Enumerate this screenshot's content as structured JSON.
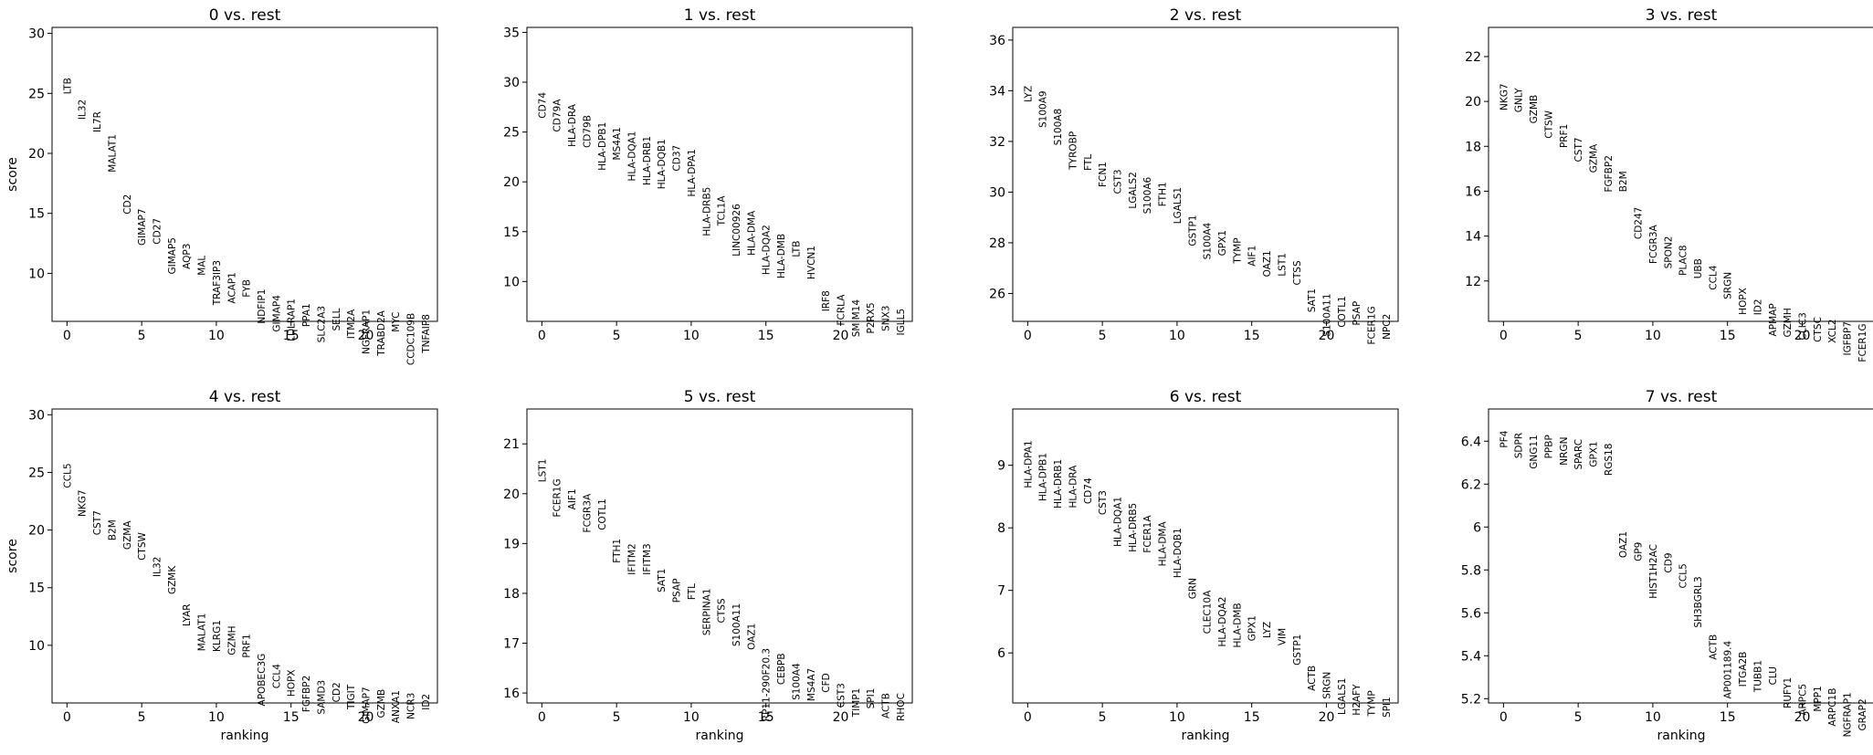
{
  "chart_data": {
    "type": "scatter",
    "xlabel": "ranking",
    "ylabel": "score",
    "panels": [
      {
        "title": "0 vs. rest",
        "xticks": [
          0,
          5,
          10,
          15,
          20
        ],
        "yticks": [
          10,
          15,
          20,
          25,
          30
        ],
        "ylim": [
          6,
          30.5
        ],
        "xlim": [
          -1,
          24.8
        ],
        "genes": [
          "LTB",
          "IL32",
          "IL7R",
          "MALAT1",
          "CD2",
          "GIMAP7",
          "CD27",
          "GIMAP5",
          "AQP3",
          "MAL",
          "TRAF3IP3",
          "ACAP1",
          "FYB",
          "NDFIP1",
          "GIMAP4",
          "LDLRAP1",
          "PPA1",
          "SLC2A3",
          "SELL",
          "ITM2A",
          "NGFRAP1",
          "TRABD2A",
          "MYC",
          "CCDC109B",
          "TNFAIP8"
        ],
        "scores": [
          26.3,
          24.5,
          23.5,
          21.6,
          16.6,
          15.4,
          14.6,
          13.0,
          12.5,
          11.5,
          11.1,
          10.1,
          9.5,
          8.7,
          8.2,
          7.9,
          7.5,
          7.3,
          7.1,
          7.0,
          7.0,
          6.9,
          6.8,
          6.7,
          6.6
        ]
      },
      {
        "title": "1 vs. rest",
        "xticks": [
          0,
          5,
          10,
          15,
          20
        ],
        "yticks": [
          10,
          15,
          20,
          25,
          30,
          35
        ],
        "ylim": [
          6,
          35.5
        ],
        "xlim": [
          -1,
          24.8
        ],
        "genes": [
          "CD74",
          "CD79A",
          "HLA-DRA",
          "CD79B",
          "HLA-DPB1",
          "MS4A1",
          "HLA-DQA1",
          "HLA-DRB1",
          "HLA-DQB1",
          "CD37",
          "HLA-DPA1",
          "HLA-DRB5",
          "TCL1A",
          "LINC00926",
          "HLA-DMA",
          "HLA-DQA2",
          "HLA-DMB",
          "LTB",
          "HVCN1",
          "IRF8",
          "FCRLA",
          "SMIM14",
          "P2RX5",
          "SNX3",
          "IGLL5"
        ],
        "scores": [
          29.0,
          28.3,
          27.8,
          26.7,
          26.0,
          25.5,
          25.1,
          24.6,
          24.3,
          23.7,
          23.3,
          19.5,
          18.6,
          17.8,
          17.1,
          15.7,
          14.8,
          14.1,
          13.6,
          9.1,
          8.7,
          8.2,
          7.9,
          7.6,
          7.3
        ]
      },
      {
        "title": "2 vs. rest",
        "xticks": [
          0,
          5,
          10,
          15,
          20
        ],
        "yticks": [
          26,
          28,
          30,
          32,
          34,
          36
        ],
        "ylim": [
          24.9,
          36.5
        ],
        "xlim": [
          -1,
          24.8
        ],
        "genes": [
          "LYZ",
          "S100A9",
          "S100A8",
          "TYROBP",
          "FTL",
          "FCN1",
          "CST3",
          "LGALS2",
          "S100A6",
          "FTH1",
          "LGALS1",
          "GSTP1",
          "S100A4",
          "GPX1",
          "TYMP",
          "AIF1",
          "OAZ1",
          "LST1",
          "CTSS",
          "SAT1",
          "S100A11",
          "COTL1",
          "PSAP",
          "FCER1G",
          "NPC2"
        ],
        "scores": [
          34.2,
          34.0,
          33.3,
          32.4,
          31.5,
          31.2,
          30.9,
          30.8,
          30.6,
          30.4,
          30.2,
          29.1,
          28.8,
          28.5,
          28.2,
          27.9,
          27.7,
          27.6,
          27.3,
          26.2,
          26.0,
          25.9,
          25.7,
          25.5,
          25.2
        ]
      },
      {
        "title": "3 vs. rest",
        "xticks": [
          0,
          5,
          10,
          15,
          20
        ],
        "yticks": [
          12,
          14,
          16,
          18,
          20,
          22
        ],
        "ylim": [
          10.2,
          23.3
        ],
        "xlim": [
          -1,
          24.8
        ],
        "genes": [
          "NKG7",
          "GNLY",
          "GZMB",
          "CTSW",
          "PRF1",
          "CST7",
          "GZMA",
          "FGFBP2",
          "B2M",
          "CD247",
          "FCGR3A",
          "SPON2",
          "PLAC8",
          "UBB",
          "CCL4",
          "SRGN",
          "HOPX",
          "ID2",
          "APMAP",
          "GZMH",
          "CLIC3",
          "CTSC",
          "XCL2",
          "IGFBP7",
          "FCER1G"
        ],
        "scores": [
          20.8,
          20.6,
          20.3,
          19.6,
          19.0,
          18.4,
          18.1,
          17.6,
          16.9,
          15.3,
          14.5,
          14.0,
          13.6,
          13.0,
          12.7,
          12.4,
          11.7,
          11.2,
          11.0,
          10.8,
          10.6,
          10.4,
          10.3,
          10.2,
          10.1
        ]
      },
      {
        "title": "4 vs. rest",
        "xticks": [
          0,
          5,
          10,
          15,
          20
        ],
        "yticks": [
          10,
          15,
          20,
          25,
          30
        ],
        "ylim": [
          5,
          30.5
        ],
        "xlim": [
          -1,
          24.8
        ],
        "genes": [
          "CCL5",
          "NKG7",
          "CST7",
          "B2M",
          "GZMA",
          "CTSW",
          "IL32",
          "GZMK",
          "LYAR",
          "MALAT1",
          "KLRG1",
          "GZMH",
          "PRF1",
          "APOBEC3G",
          "CCL4",
          "HOPX",
          "FGFBP2",
          "SAMD3",
          "CD2",
          "TIGIT",
          "GIMAP7",
          "GZMB",
          "ANXA1",
          "NCR3",
          "ID2"
        ],
        "scores": [
          25.8,
          23.5,
          21.7,
          20.9,
          20.8,
          19.8,
          17.7,
          16.9,
          13.6,
          12.8,
          12.2,
          11.7,
          11.0,
          9.3,
          8.4,
          7.9,
          7.4,
          7.0,
          6.8,
          6.6,
          6.4,
          6.2,
          6.1,
          5.9,
          5.8
        ]
      },
      {
        "title": "5 vs. rest",
        "xticks": [
          0,
          5,
          10,
          15,
          20
        ],
        "yticks": [
          16,
          17,
          18,
          19,
          20,
          21
        ],
        "ylim": [
          15.8,
          21.7
        ],
        "xlim": [
          -1,
          24.8
        ],
        "genes": [
          "LST1",
          "FCER1G",
          "AIF1",
          "FCGR3A",
          "COTL1",
          "FTH1",
          "IFITM2",
          "IFITM3",
          "SAT1",
          "PSAP",
          "FTL",
          "SERPINA1",
          "CTSS",
          "S100A11",
          "OAZ1",
          "RP11-290F20.3",
          "CEBPB",
          "S100A4",
          "MS4A7",
          "CFD",
          "CST3",
          "TIMP1",
          "SPI1",
          "ACTB",
          "RHOC"
        ],
        "scores": [
          20.7,
          20.3,
          20.1,
          20.0,
          19.9,
          19.1,
          19.0,
          19.0,
          18.5,
          18.3,
          18.2,
          18.1,
          17.9,
          17.8,
          17.4,
          16.9,
          16.8,
          16.6,
          16.5,
          16.4,
          16.2,
          16.1,
          16.1,
          16.0,
          16.0
        ]
      },
      {
        "title": "6 vs. rest",
        "xticks": [
          0,
          5,
          10,
          15,
          20
        ],
        "yticks": [
          6,
          7,
          8,
          9
        ],
        "ylim": [
          5.2,
          9.9
        ],
        "xlim": [
          -1,
          24.8
        ],
        "genes": [
          "HLA-DPA1",
          "HLA-DPB1",
          "HLA-DRB1",
          "HLA-DRA",
          "CD74",
          "CST3",
          "HLA-DQA1",
          "HLA-DRB5",
          "FCER1A",
          "HLA-DMA",
          "HLA-DQB1",
          "GRN",
          "CLEC10A",
          "HLA-DQA2",
          "HLA-DMB",
          "GPX1",
          "LYZ",
          "VIM",
          "GSTP1",
          "ACTB",
          "SRGN",
          "LGALS1",
          "H2AFY",
          "TYMP",
          "SPI1"
        ],
        "scores": [
          9.4,
          9.2,
          9.1,
          9.0,
          8.8,
          8.6,
          8.5,
          8.4,
          8.2,
          8.1,
          8.0,
          7.2,
          7.0,
          6.9,
          6.8,
          6.6,
          6.5,
          6.4,
          6.3,
          5.8,
          5.7,
          5.6,
          5.5,
          5.4,
          5.3
        ]
      },
      {
        "title": "7 vs. rest",
        "xticks": [
          0,
          5,
          10,
          15,
          20
        ],
        "yticks": [
          5.2,
          5.4,
          5.6,
          5.8,
          6.0,
          6.2,
          6.4
        ],
        "ylim": [
          5.18,
          6.55
        ],
        "xlim": [
          -1,
          24.8
        ],
        "genes": [
          "PF4",
          "SDPR",
          "GNG11",
          "PPBP",
          "NRGN",
          "SPARC",
          "GPX1",
          "RGS18",
          "OAZ1",
          "GP9",
          "HIST1H2AC",
          "CD9",
          "CCL5",
          "SH3BGRL3",
          "ACTB",
          "AP001189.4",
          "ITGA2B",
          "TUBB1",
          "CLU",
          "RUFY1",
          "ARPC5",
          "MPP1",
          "ARPC1B",
          "NGFRAP1",
          "GRAP2"
        ],
        "scores": [
          6.45,
          6.44,
          6.43,
          6.43,
          6.42,
          6.41,
          6.4,
          6.39,
          5.98,
          5.93,
          5.92,
          5.88,
          5.83,
          5.77,
          5.5,
          5.47,
          5.42,
          5.38,
          5.35,
          5.3,
          5.27,
          5.26,
          5.25,
          5.23,
          5.2
        ]
      }
    ]
  }
}
